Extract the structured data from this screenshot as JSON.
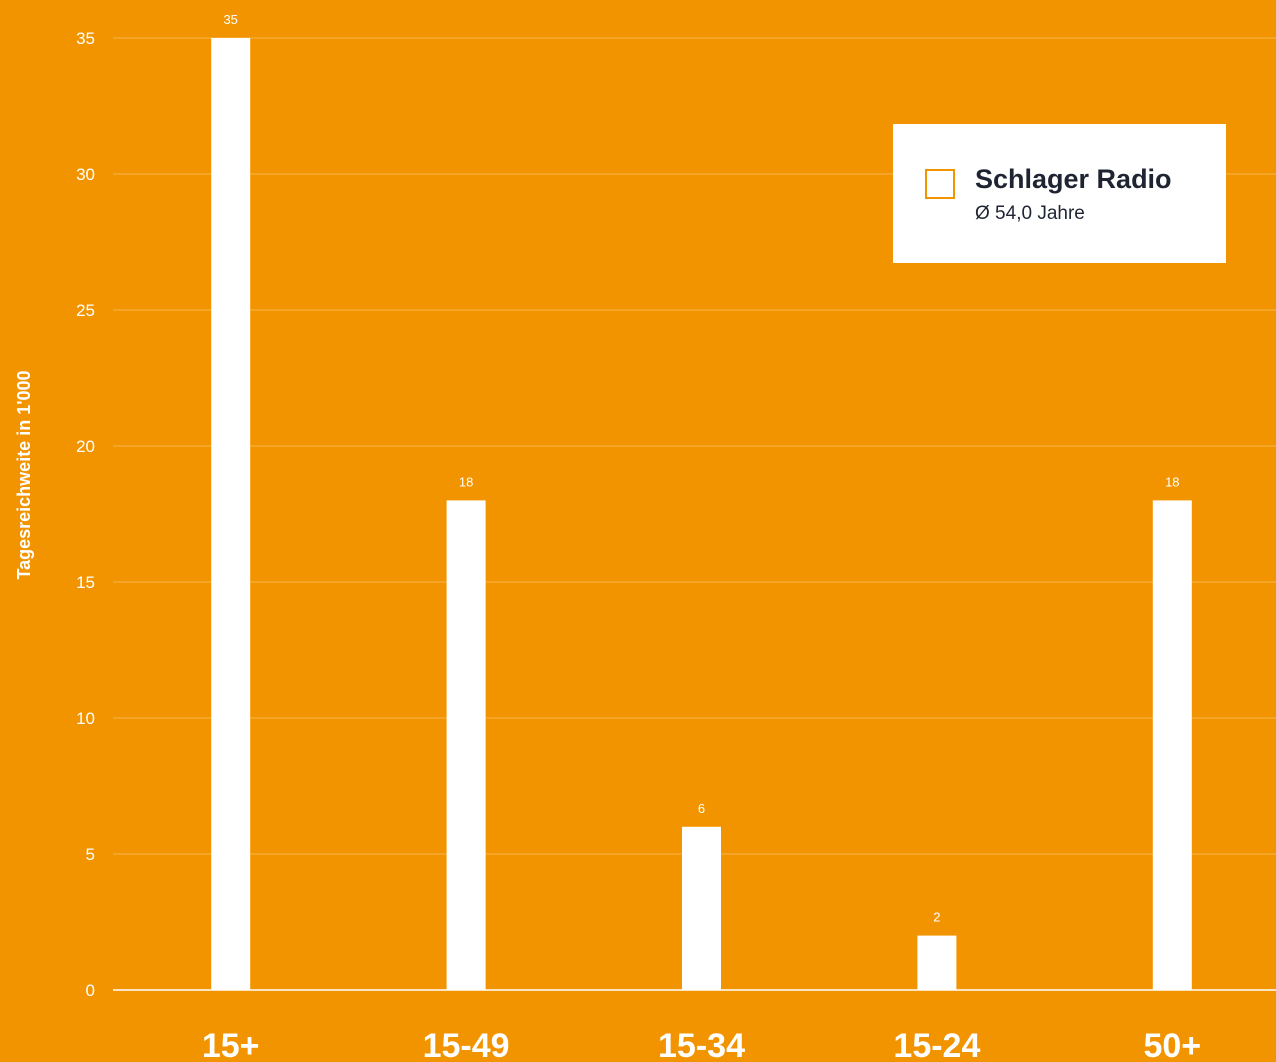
{
  "chart_data": {
    "type": "bar",
    "categories": [
      "15+",
      "15-49",
      "15-34",
      "15-24",
      "50+"
    ],
    "series": [
      {
        "name": "Schlager Radio",
        "values": [
          35,
          18,
          6,
          2,
          18
        ]
      }
    ],
    "ylabel": "Tagesreichweite in 1'000",
    "ylim": [
      0,
      35
    ],
    "yticks": [
      0,
      5,
      10,
      15,
      20,
      25,
      30,
      35
    ],
    "grid": true,
    "legend_position": "top-right",
    "colors": {
      "background": "#F29400",
      "bar": "#ffffff",
      "gridline": "#F7B54D",
      "text": "#ffffff",
      "legend_text": "#1f2433"
    }
  },
  "legend": {
    "series_name": "Schlager Radio",
    "subtitle": "Ø 54,0 Jahre"
  }
}
